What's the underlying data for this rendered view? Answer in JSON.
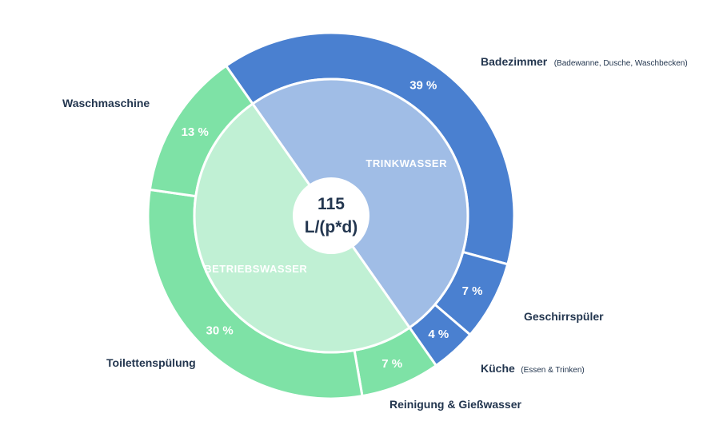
{
  "chart_data": {
    "type": "pie",
    "center": {
      "line1": "115",
      "line2": "L/(p*d)"
    },
    "inner": [
      {
        "label": "TRINKWASSER",
        "value": 50,
        "color": "#a0bde6"
      },
      {
        "label": "BETRIEBSWASSER",
        "value": 50,
        "color": "#c0f0d4"
      }
    ],
    "outer": [
      {
        "label": "Badezimmer",
        "note": "(Badewanne, Dusche, Waschbecken)",
        "value": 39,
        "value_label": "39 %",
        "color": "#4a80d0"
      },
      {
        "label": "Geschirrspüler",
        "note": "",
        "value": 7,
        "value_label": "7 %",
        "color": "#4a80d0"
      },
      {
        "label": "Küche",
        "note": "(Essen & Trinken)",
        "value": 4,
        "value_label": "4 %",
        "color": "#4a80d0"
      },
      {
        "label": "Reinigung & Gießwasser",
        "note": "",
        "value": 7,
        "value_label": "7 %",
        "color": "#7ee2a6"
      },
      {
        "label": "Toilettenspülung",
        "note": "",
        "value": 30,
        "value_label": "30 %",
        "color": "#7ee2a6"
      },
      {
        "label": "Waschmaschine",
        "note": "",
        "value": 13,
        "value_label": "13 %",
        "color": "#7ee2a6"
      }
    ]
  }
}
